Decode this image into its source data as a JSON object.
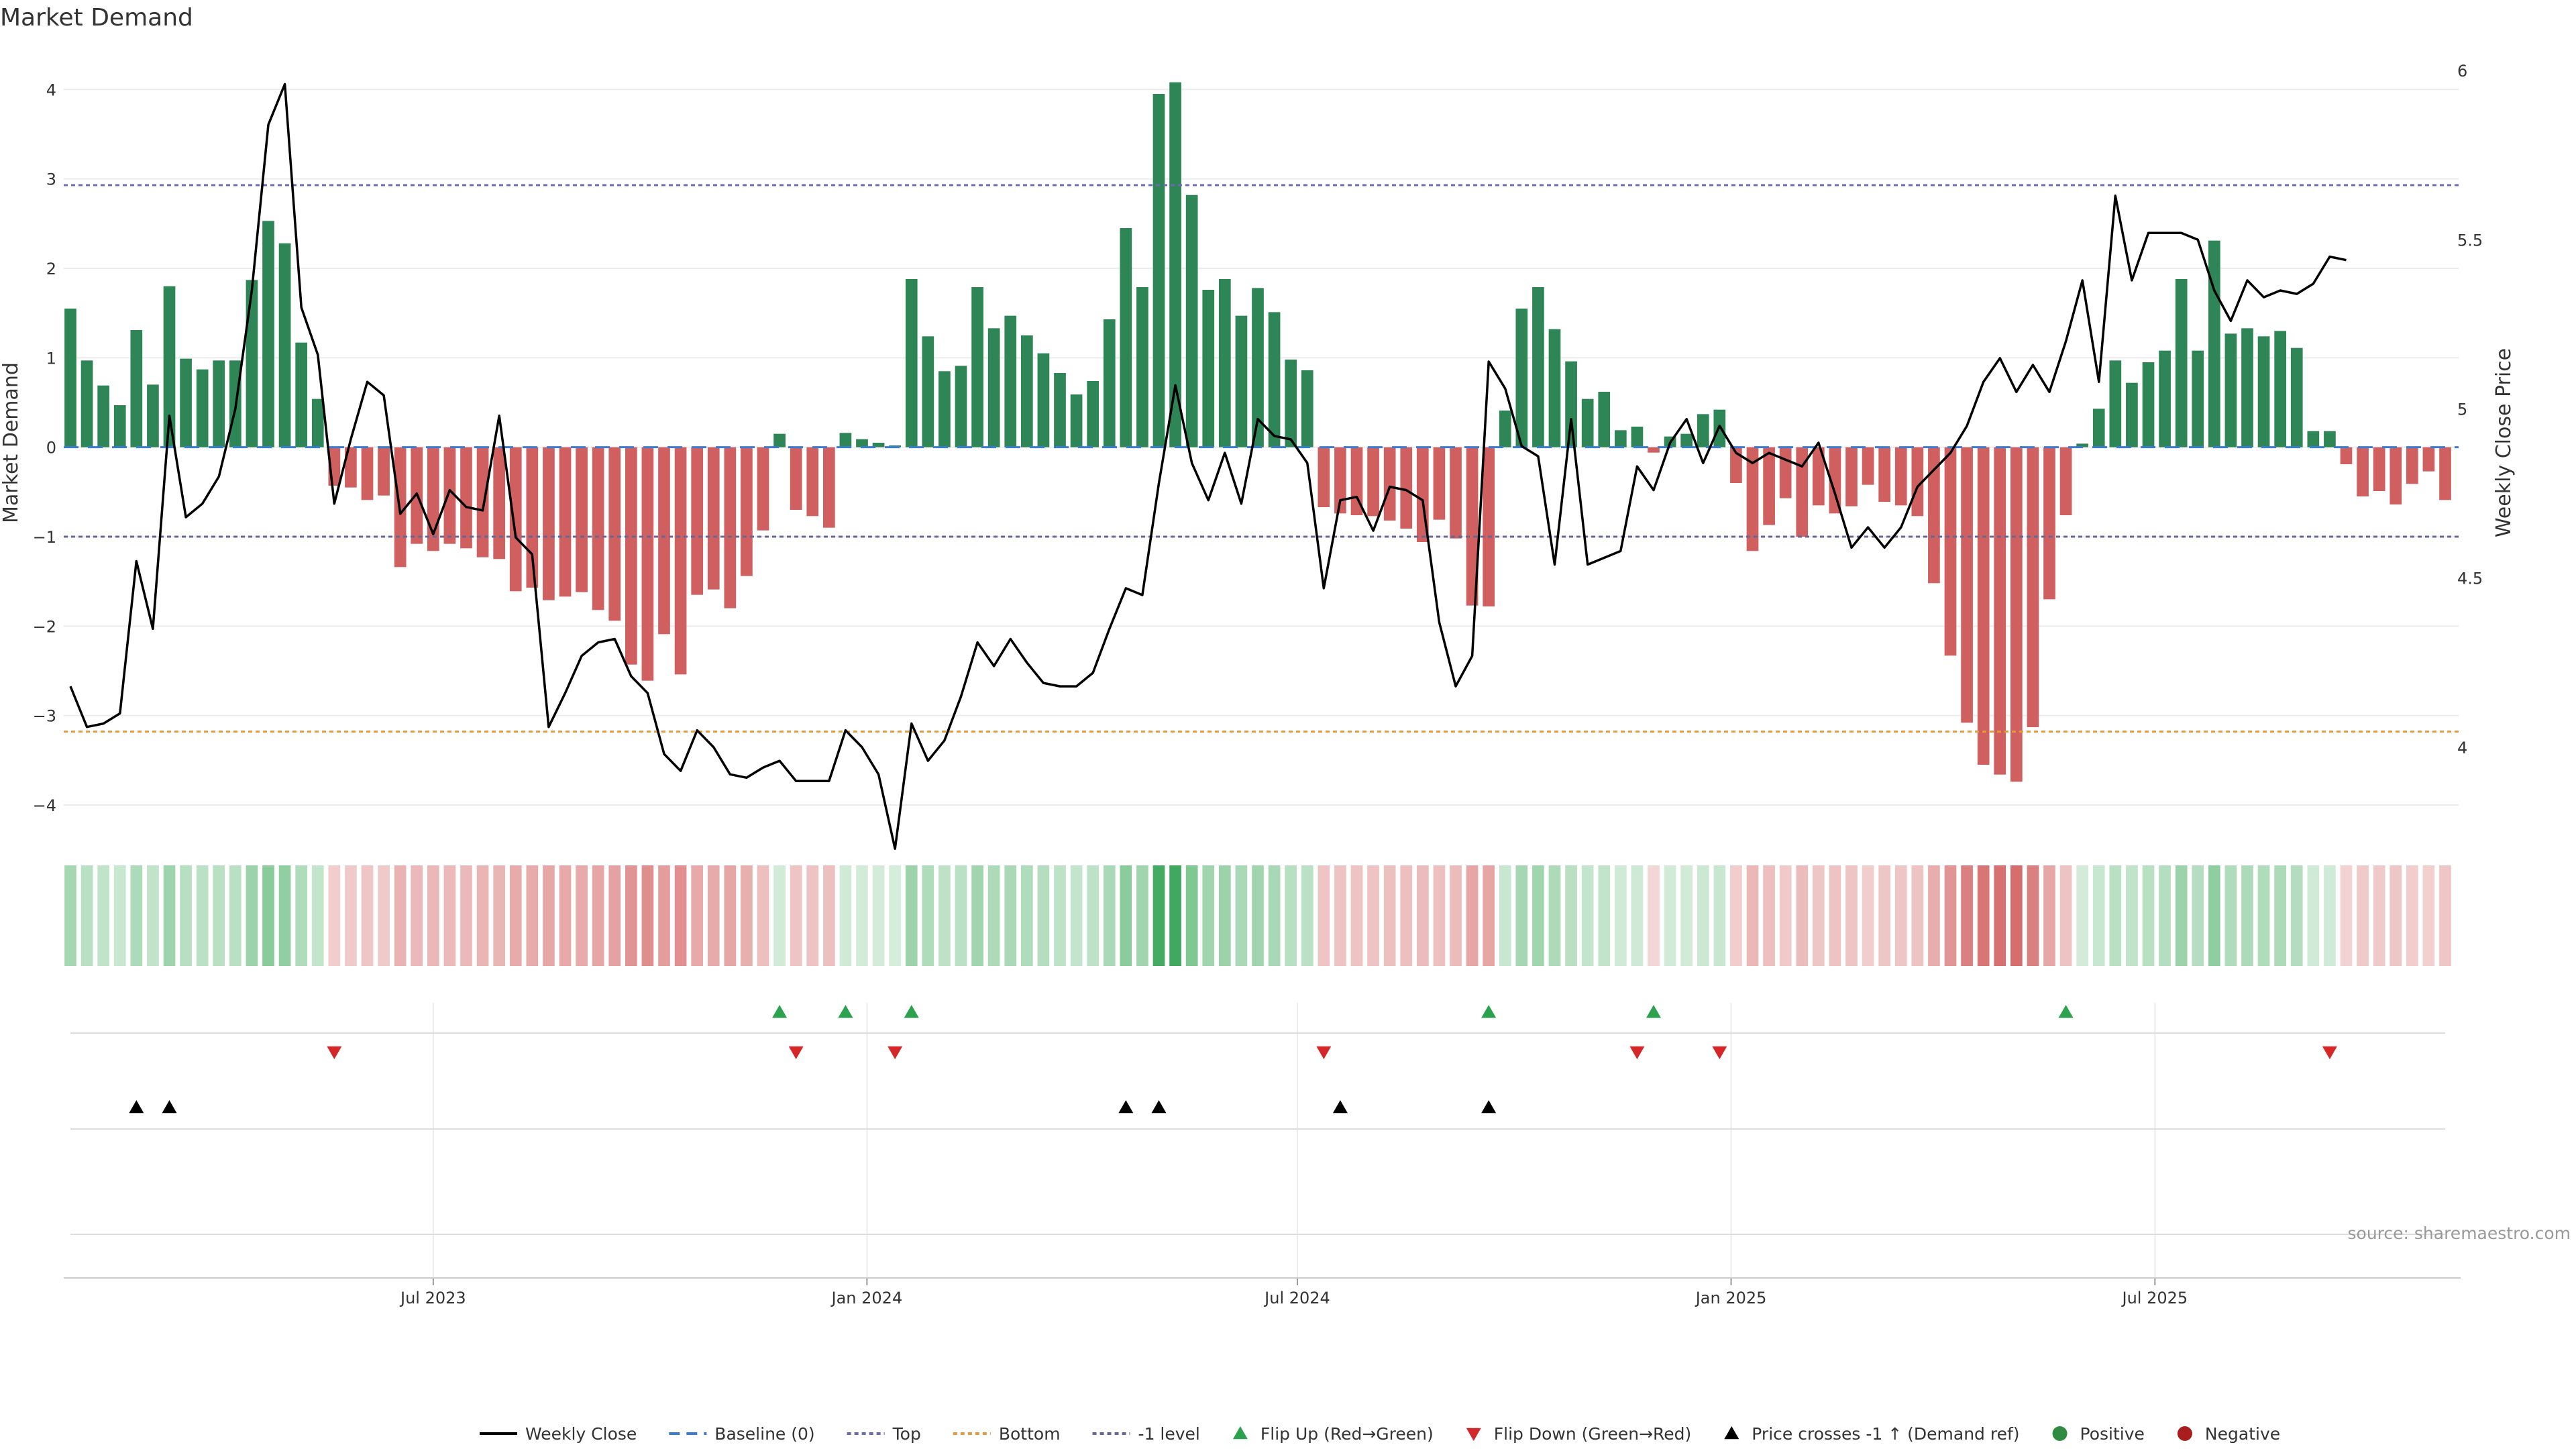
{
  "chart_data": {
    "type": "bar",
    "title": "Market Demand",
    "ylabel": "Market Demand",
    "y2label": "Weekly Close Price",
    "ylim": [
      -4.3,
      4.4
    ],
    "y_ticks": [
      4,
      3,
      2,
      1,
      0,
      -1,
      -2,
      -3,
      -4
    ],
    "y_tick_labels": [
      "4",
      "3",
      "2",
      "1",
      "0",
      "−1",
      "−2",
      "−3",
      "−4"
    ],
    "y2lim": [
      3.75,
      6.05
    ],
    "y2_ticks": [
      6,
      5.5,
      5,
      4.5,
      4
    ],
    "y2_tick_labels": [
      "6",
      "5.5",
      "5",
      "4.5",
      "4"
    ],
    "x_tick_labels": [
      "Jul 2023",
      "Jan 2024",
      "Jul 2024",
      "Jan 2025",
      "Jul 2025"
    ],
    "x_tick_week_index": [
      22,
      48.3,
      74.4,
      100.7,
      126.4
    ],
    "reference_lines": {
      "top": 2.93,
      "bottom": -3.18,
      "minus_one_level": -1,
      "baseline": 0
    },
    "demand": [
      1.55,
      0.97,
      0.69,
      0.47,
      1.31,
      0.7,
      1.8,
      0.99,
      0.87,
      0.97,
      0.97,
      1.87,
      2.53,
      2.28,
      1.17,
      0.54,
      -0.43,
      -0.45,
      -0.59,
      -0.54,
      -1.34,
      -1.08,
      -1.16,
      -1.08,
      -1.13,
      -1.23,
      -1.25,
      -1.61,
      -1.57,
      -1.71,
      -1.67,
      -1.62,
      -1.82,
      -1.94,
      -2.43,
      -2.61,
      -2.09,
      -2.54,
      -1.65,
      -1.59,
      -1.8,
      -1.44,
      -0.93,
      0.15,
      -0.7,
      -0.77,
      -0.9,
      0.16,
      0.09,
      0.05,
      0.02,
      1.88,
      1.24,
      0.85,
      0.91,
      1.79,
      1.33,
      1.47,
      1.25,
      1.05,
      0.83,
      0.59,
      0.74,
      1.43,
      2.45,
      1.79,
      3.95,
      4.08,
      2.82,
      1.76,
      1.88,
      1.47,
      1.78,
      1.51,
      0.98,
      0.86,
      -0.67,
      -0.74,
      -0.76,
      -0.77,
      -0.82,
      -0.91,
      -1.06,
      -0.81,
      -1.02,
      -1.77,
      -1.78,
      0.41,
      1.55,
      1.79,
      1.32,
      0.96,
      0.54,
      0.62,
      0.19,
      0.23,
      -0.06,
      0.12,
      0.15,
      0.37,
      0.42,
      -0.4,
      -1.16,
      -0.87,
      -0.57,
      -1,
      -0.65,
      -0.74,
      -0.66,
      -0.42,
      -0.61,
      -0.65,
      -0.77,
      -1.52,
      -2.33,
      -3.08,
      -3.55,
      -3.66,
      -3.74,
      -3.13,
      -1.7,
      -0.76,
      0.04,
      0.43,
      0.97,
      0.72,
      0.95,
      1.08,
      1.88,
      1.08,
      2.31,
      1.27,
      1.33,
      1.24,
      1.3,
      1.11,
      0.18,
      0.18,
      -0.19,
      -0.55,
      -0.49,
      -0.64,
      -0.41,
      -0.27,
      -0.59
    ],
    "weekly_close": [
      4.18,
      4.06,
      4.07,
      4.1,
      4.55,
      4.35,
      4.98,
      4.68,
      4.72,
      4.8,
      5,
      5.35,
      5.84,
      5.96,
      5.3,
      5.16,
      4.72,
      4.91,
      5.08,
      5.04,
      4.69,
      4.75,
      4.63,
      4.76,
      4.71,
      4.7,
      4.98,
      4.62,
      4.57,
      4.06,
      4.16,
      4.27,
      4.31,
      4.32,
      4.21,
      4.16,
      3.98,
      3.93,
      4.05,
      4,
      3.92,
      3.91,
      3.94,
      3.96,
      3.9,
      3.9,
      3.9,
      4.05,
      4,
      3.92,
      3.7,
      4.07,
      3.96,
      4.02,
      4.15,
      4.31,
      4.24,
      4.32,
      4.25,
      4.19,
      4.18,
      4.18,
      4.22,
      4.35,
      4.47,
      4.45,
      4.78,
      5.07,
      4.84,
      4.73,
      4.87,
      4.72,
      4.97,
      4.92,
      4.91,
      4.84,
      4.47,
      4.73,
      4.74,
      4.64,
      4.77,
      4.76,
      4.73,
      4.37,
      4.18,
      4.27,
      5.14,
      5.06,
      4.89,
      4.86,
      4.54,
      4.97,
      4.54,
      4.56,
      4.58,
      4.83,
      4.76,
      4.9,
      4.97,
      4.84,
      4.95,
      4.87,
      4.84,
      4.87,
      4.85,
      4.83,
      4.9,
      4.75,
      4.59,
      4.65,
      4.59,
      4.65,
      4.77,
      4.82,
      4.87,
      4.95,
      5.08,
      5.15,
      5.05,
      5.13,
      5.05,
      5.2,
      5.38,
      5.08,
      5.63,
      5.38,
      5.52,
      5.52,
      5.52,
      5.5,
      5.35,
      5.26,
      5.38,
      5.33,
      5.35,
      5.34,
      5.37,
      5.45,
      5.44
    ],
    "flip_up": [
      43,
      47,
      51,
      86,
      96,
      121
    ],
    "flip_down": [
      16,
      44,
      50,
      76,
      95,
      100,
      137
    ],
    "price_crosses": [
      4,
      6,
      64,
      66,
      77,
      86
    ],
    "legend": [
      {
        "label": "Weekly Close",
        "symbol": "line",
        "color": "#000000"
      },
      {
        "label": "Baseline (0)",
        "symbol": "dash",
        "color": "#3a7bd5"
      },
      {
        "label": "Top",
        "symbol": "dot",
        "color": "#6b6bb5"
      },
      {
        "label": "Bottom",
        "symbol": "dot",
        "color": "#e69a3a"
      },
      {
        "label": "-1 level",
        "symbol": "dot",
        "color": "#666699"
      },
      {
        "label": "Flip Up (Red→Green)",
        "symbol": "tri-up",
        "color": "#2ca24f"
      },
      {
        "label": "Flip Down (Green→Red)",
        "symbol": "tri-down",
        "color": "#d62728"
      },
      {
        "label": "Price crosses -1 ↑ (Demand ref)",
        "symbol": "tri-up",
        "color": "#000000"
      },
      {
        "label": "Positive",
        "symbol": "circle",
        "color": "#2e8b3f"
      },
      {
        "label": "Negative",
        "symbol": "circle",
        "color": "#a81e1e"
      }
    ],
    "source": "source: sharemaestro.com",
    "colors": {
      "positive": "#2e8556",
      "negative": "#d06060",
      "line": "#000000",
      "top": "#6b6bb5",
      "bottom": "#e69a3a",
      "minus_one": "#666699"
    }
  }
}
